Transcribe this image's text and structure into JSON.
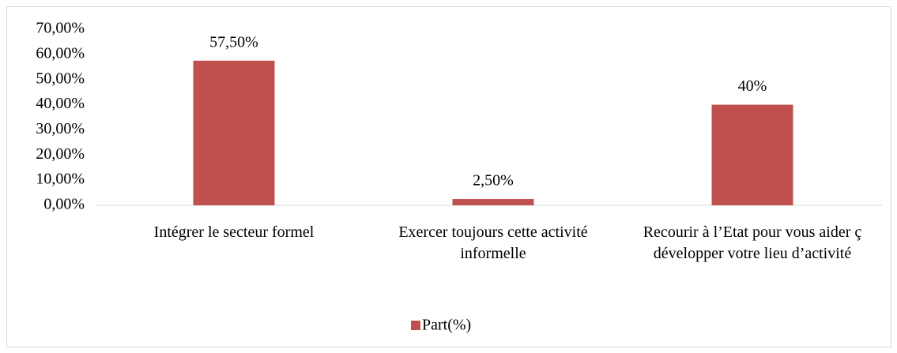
{
  "chart_data": {
    "type": "bar",
    "categories": [
      "Intégrer le secteur formel",
      "Exercer toujours cette activité informelle",
      "Recourir à l’Etat pour vous aider ç développer votre lieu d’activité"
    ],
    "series": [
      {
        "name": "Part(%)",
        "color": "#c0504d",
        "values": [
          57.5,
          2.5,
          40
        ],
        "value_labels": [
          "57,50%",
          "2,50%",
          "40%"
        ]
      }
    ],
    "ylim": [
      0,
      70
    ],
    "yticks": [
      {
        "value": 0,
        "label": "0,00%"
      },
      {
        "value": 10,
        "label": "10,00%"
      },
      {
        "value": 20,
        "label": "20,00%"
      },
      {
        "value": 30,
        "label": "30,00%"
      },
      {
        "value": 40,
        "label": "40,00%"
      },
      {
        "value": 50,
        "label": "50,00%"
      },
      {
        "value": 60,
        "label": "60,00%"
      },
      {
        "value": 70,
        "label": "70,00%"
      }
    ],
    "grid": false,
    "legend": "bottom"
  }
}
